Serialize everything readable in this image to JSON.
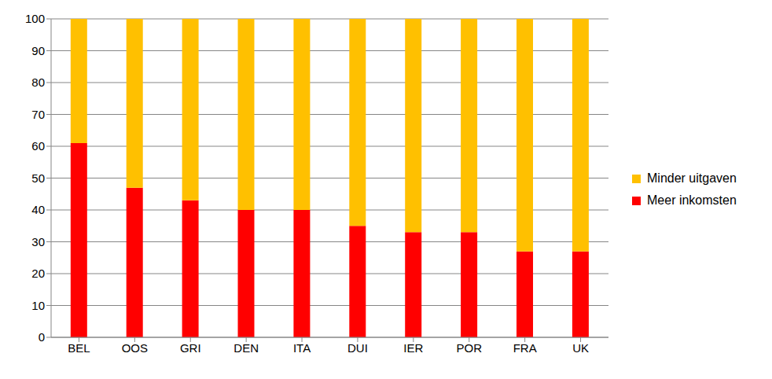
{
  "chart_data": {
    "type": "bar",
    "stacked": true,
    "categories": [
      "BEL",
      "OOS",
      "GRI",
      "DEN",
      "ITA",
      "DUI",
      "IER",
      "POR",
      "FRA",
      "UK"
    ],
    "series": [
      {
        "name": "Meer inkomsten",
        "color": "#ff0000",
        "values": [
          61,
          47,
          43,
          40,
          40,
          35,
          33,
          33,
          27,
          27
        ]
      },
      {
        "name": "Minder uitgaven",
        "color": "#ffc000",
        "values": [
          39,
          53,
          57,
          60,
          60,
          65,
          67,
          67,
          73,
          73
        ]
      }
    ],
    "ylim": [
      0,
      100
    ],
    "yticks": [
      0,
      10,
      20,
      30,
      40,
      50,
      60,
      70,
      80,
      90,
      100
    ],
    "grid": true,
    "legend": "right"
  }
}
